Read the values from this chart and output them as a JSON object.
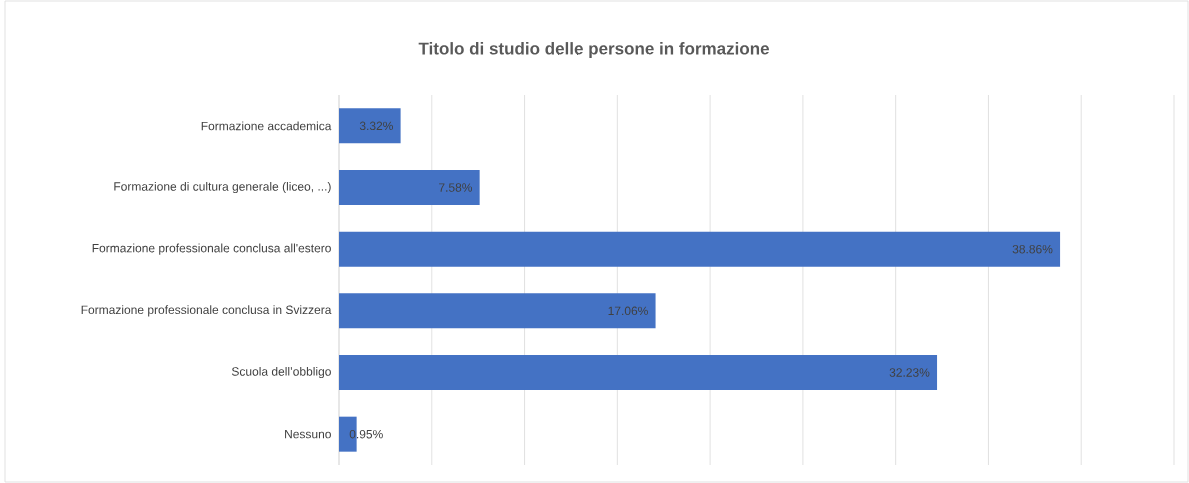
{
  "chart_data": {
    "type": "bar",
    "orientation": "horizontal",
    "title": "Titolo di studio delle persone in formazione",
    "categories": [
      "Formazione accademica",
      "Formazione di cultura generale (liceo, ...)",
      "Formazione professionale conclusa all'estero",
      "Formazione professionale conclusa in Svizzera",
      "Scuola dell’obbligo",
      "Nessuno"
    ],
    "values": [
      3.32,
      7.58,
      38.86,
      17.06,
      32.23,
      0.95
    ],
    "value_labels": [
      "3.32%",
      "7.58%",
      "38.86%",
      "17.06%",
      "32.23%",
      "0.95%"
    ],
    "color": "#4472c4",
    "grid": "x",
    "tick_labels": "y"
  }
}
